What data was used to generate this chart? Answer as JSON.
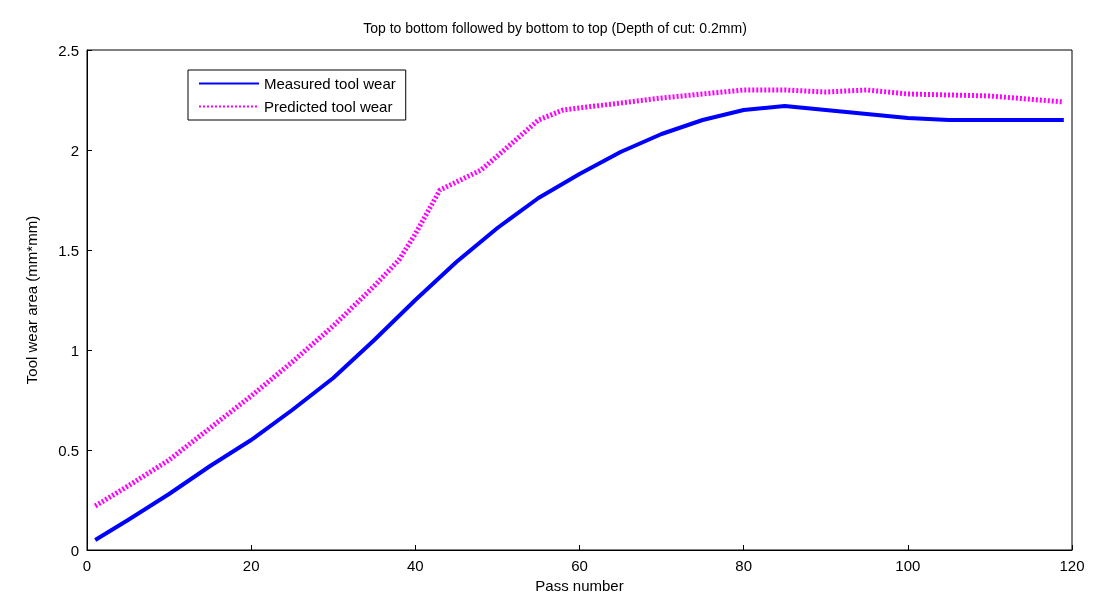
{
  "chart_data": {
    "type": "line",
    "title": "Top to bottom followed by bottom to top (Depth of cut: 0.2mm)",
    "xlabel": "Pass number",
    "ylabel": "Tool wear area (mm*mm)",
    "xlim": [
      0,
      120
    ],
    "xticks": [
      0,
      20,
      40,
      60,
      80,
      100,
      120
    ],
    "ylim": [
      0,
      2.5
    ],
    "yticks": [
      0,
      0.5,
      1,
      1.5,
      2,
      2.5
    ],
    "grid": false,
    "legend": "top left",
    "marker": "none",
    "series": [
      {
        "name": "Measured tool wear",
        "color": "#0000ff",
        "line_style": "solid",
        "x": [
          1,
          5,
          10,
          15,
          20,
          25,
          30,
          35,
          40,
          45,
          50,
          55,
          60,
          65,
          70,
          75,
          80,
          85,
          90,
          95,
          100,
          105,
          110,
          115,
          119
        ],
        "values": [
          0.05,
          0.15,
          0.28,
          0.42,
          0.55,
          0.7,
          0.86,
          1.05,
          1.25,
          1.44,
          1.61,
          1.76,
          1.88,
          1.99,
          2.08,
          2.15,
          2.2,
          2.22,
          2.2,
          2.18,
          2.16,
          2.15,
          2.15,
          2.15,
          2.15
        ]
      },
      {
        "name": "Predicted tool wear",
        "color": "#ff00ff",
        "line_style": "dotted",
        "x": [
          1,
          5,
          10,
          15,
          20,
          25,
          30,
          35,
          38,
          40,
          43,
          48,
          50,
          55,
          58,
          62,
          70,
          80,
          85,
          90,
          95,
          100,
          110,
          119
        ],
        "values": [
          0.22,
          0.32,
          0.45,
          0.61,
          0.77,
          0.94,
          1.12,
          1.32,
          1.45,
          1.58,
          1.8,
          1.9,
          1.97,
          2.15,
          2.2,
          2.22,
          2.26,
          2.3,
          2.3,
          2.29,
          2.3,
          2.28,
          2.27,
          2.24
        ]
      }
    ]
  }
}
